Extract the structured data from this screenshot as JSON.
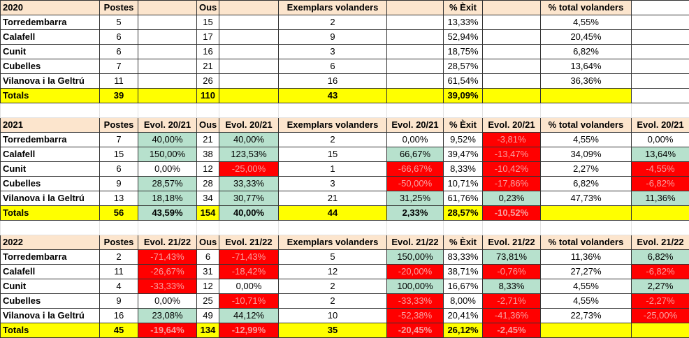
{
  "palette": {
    "g": "#b7e1cd",
    "r": "#ff0000",
    "y": "#ffff00",
    "w": "#ffffff",
    "h": "#fce5cd"
  },
  "blocks": [
    {
      "header": [
        "2020",
        "Postes",
        null,
        "Ous",
        null,
        "Exemplars volanders",
        null,
        "% Èxit",
        null,
        "% total volanders",
        null
      ],
      "header_fill": "hhhhhhhhhhw",
      "rows": [
        [
          "Torredembarra",
          "5",
          null,
          "15",
          null,
          "2",
          null,
          "13,33%",
          null,
          "4,55%",
          null
        ],
        [
          "Calafell",
          "6",
          null,
          "17",
          null,
          "9",
          null,
          "52,94%",
          null,
          "20,45%",
          null
        ],
        [
          "Cunit",
          "6",
          null,
          "16",
          null,
          "3",
          null,
          "18,75%",
          null,
          "6,82%",
          null
        ],
        [
          "Cubelles",
          "7",
          null,
          "21",
          null,
          "6",
          null,
          "28,57%",
          null,
          "13,64%",
          null
        ],
        [
          "Vilanova i la Geltrú",
          "11",
          null,
          "26",
          null,
          "16",
          null,
          "61,54%",
          null,
          "36,36%",
          null
        ],
        [
          "Totals",
          "39",
          null,
          "110",
          null,
          "43",
          null,
          "39,09%",
          null,
          null,
          null
        ]
      ],
      "fills": [
        "wwwwwwwwwww",
        "wwwwwwwwwww",
        "wwwwwwwwwww",
        "wwwwwwwwwww",
        "wwwwwwwwwww",
        "yyyyyyyyyyw"
      ]
    },
    {
      "header": [
        "2021",
        "Postes",
        "Evol. 20/21",
        "Ous",
        "Evol. 20/21",
        "Exemplars volanders",
        "Evol. 20/21",
        "% Èxit",
        "Evol. 20/21",
        "% total volanders",
        "Evol. 20/21"
      ],
      "header_fill": "hhhhhhhhhhh",
      "rows": [
        [
          "Torredembarra",
          "7",
          "40,00%",
          "21",
          "40,00%",
          "2",
          "0,00%",
          "9,52%",
          "-3,81%",
          "4,55%",
          "0,00%"
        ],
        [
          "Calafell",
          "15",
          "150,00%",
          "38",
          "123,53%",
          "15",
          "66,67%",
          "39,47%",
          "-13,47%",
          "34,09%",
          "13,64%"
        ],
        [
          "Cunit",
          "6",
          "0,00%",
          "12",
          "-25,00%",
          "1",
          "-66,67%",
          "8,33%",
          "-10,42%",
          "2,27%",
          "-4,55%"
        ],
        [
          "Cubelles",
          "9",
          "28,57%",
          "28",
          "33,33%",
          "3",
          "-50,00%",
          "10,71%",
          "-17,86%",
          "6,82%",
          "-6,82%"
        ],
        [
          "Vilanova i la Geltrú",
          "13",
          "18,18%",
          "34",
          "30,77%",
          "21",
          "31,25%",
          "61,76%",
          "0,23%",
          "47,73%",
          "11,36%"
        ],
        [
          "Totals",
          "56",
          "43,59%",
          "154",
          "40,00%",
          "44",
          "2,33%",
          "28,57%",
          "-10,52%",
          null,
          null
        ]
      ],
      "fills": [
        "wwgwgwwwrww",
        "wwgwgwgwrwg",
        "wwwwrwrwrwr",
        "wwgwgwrwrwr",
        "wwgwgwgwgwg",
        "yygygygyryy"
      ]
    },
    {
      "header": [
        "2022",
        "Postes",
        "Evol. 21/22",
        "Ous",
        "Evol. 21/22",
        "Exemplars volanders",
        "Evol. 21/22",
        "% Èxit",
        "Evol. 21/22",
        "% total volanders",
        "Evol. 21/22"
      ],
      "header_fill": "hhhhhhhhhhh",
      "rows": [
        [
          "Torredembarra",
          "2",
          "-71,43%",
          "6",
          "-71,43%",
          "5",
          "150,00%",
          "83,33%",
          "73,81%",
          "11,36%",
          "6,82%"
        ],
        [
          "Calafell",
          "11",
          "-26,67%",
          "31",
          "-18,42%",
          "12",
          "-20,00%",
          "38,71%",
          "-0,76%",
          "27,27%",
          "-6,82%"
        ],
        [
          "Cunit",
          "4",
          "-33,33%",
          "12",
          "0,00%",
          "2",
          "100,00%",
          "16,67%",
          "8,33%",
          "4,55%",
          "2,27%"
        ],
        [
          "Cubelles",
          "9",
          "0,00%",
          "25",
          "-10,71%",
          "2",
          "-33,33%",
          "8,00%",
          "-2,71%",
          "4,55%",
          "-2,27%"
        ],
        [
          "Vilanova i la Geltrú",
          "16",
          "23,08%",
          "49",
          "44,12%",
          "10",
          "-52,38%",
          "20,41%",
          "-41,36%",
          "22,73%",
          "-25,00%"
        ],
        [
          "Totals",
          "45",
          "-19,64%",
          "134",
          "-12,99%",
          "35",
          "-20,45%",
          "26,12%",
          "-2,45%",
          null,
          null
        ]
      ],
      "fills": [
        "wwrwrwgwgwg",
        "wwrwrwrwrwr",
        "wwrwwwgwgwg",
        "wwwwrwrwrwr",
        "wwgwgwrwrwr",
        "yyryryryryy"
      ]
    }
  ]
}
